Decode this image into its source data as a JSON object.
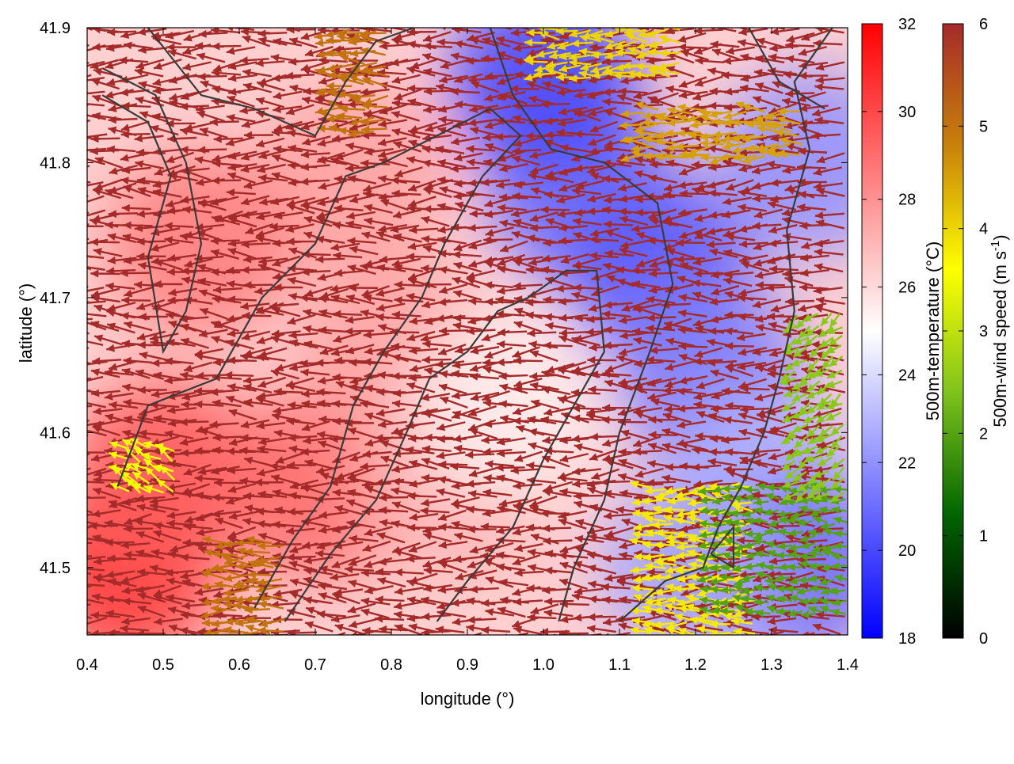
{
  "chart_data": {
    "type": "heatmap",
    "title": "",
    "xlabel": "longitude (°)",
    "ylabel": "latitude (°)",
    "xlim": [
      0.4,
      1.4
    ],
    "ylim": [
      41.45,
      41.9
    ],
    "xticks": [
      "0.4",
      "0.5",
      "0.6",
      "0.7",
      "0.8",
      "0.9",
      "1.0",
      "1.1",
      "1.2",
      "1.3",
      "1.4"
    ],
    "yticks": [
      "41.5",
      "41.6",
      "41.7",
      "41.8",
      "41.9"
    ],
    "grid": false,
    "temperature_colorbar": {
      "label": "500m-temperature (°C)",
      "range": [
        18,
        32
      ],
      "ticks": [
        "18",
        "20",
        "22",
        "24",
        "26",
        "28",
        "30",
        "32"
      ],
      "colors": [
        "#0000ff",
        "#ffffff",
        "#ff0000"
      ]
    },
    "windspeed_colorbar": {
      "label_main": "500m-wind speed (m s",
      "label_sup": "-1",
      "label_end": ")",
      "range": [
        0,
        6
      ],
      "ticks": [
        "0",
        "1",
        "2",
        "3",
        "4",
        "5",
        "6"
      ],
      "colors": [
        "#000000",
        "#006400",
        "#7fc31c",
        "#ffff00",
        "#c8820a",
        "#a52a2a"
      ]
    },
    "temperature_field": [
      {
        "lon": 0.45,
        "lat": 41.5,
        "temp": 30.5
      },
      {
        "lon": 0.5,
        "lat": 41.57,
        "temp": 29.5
      },
      {
        "lon": 0.7,
        "lat": 41.56,
        "temp": 29.0
      },
      {
        "lon": 0.8,
        "lat": 41.66,
        "temp": 27.5
      },
      {
        "lon": 0.88,
        "lat": 41.56,
        "temp": 27.0
      },
      {
        "lon": 0.75,
        "lat": 41.79,
        "temp": 27.5
      },
      {
        "lon": 0.55,
        "lat": 41.74,
        "temp": 28.5
      },
      {
        "lon": 0.95,
        "lat": 41.62,
        "temp": 25.5
      },
      {
        "lon": 1.05,
        "lat": 41.78,
        "temp": 21.0
      },
      {
        "lon": 1.15,
        "lat": 41.72,
        "temp": 20.5
      },
      {
        "lon": 1.0,
        "lat": 41.86,
        "temp": 20.0
      },
      {
        "lon": 1.22,
        "lat": 41.64,
        "temp": 21.5
      },
      {
        "lon": 1.3,
        "lat": 41.56,
        "temp": 23.0
      },
      {
        "lon": 1.33,
        "lat": 41.5,
        "temp": 21.0
      },
      {
        "lon": 1.2,
        "lat": 41.5,
        "temp": 22.5
      },
      {
        "lon": 1.35,
        "lat": 41.8,
        "temp": 22.0
      }
    ],
    "wind_regions": [
      {
        "lon": [
          0.4,
          1.4
        ],
        "lat": [
          41.45,
          41.9
        ],
        "speed": 6.0,
        "direction": "easterly"
      },
      {
        "lon": [
          1.14,
          1.28
        ],
        "lat": [
          41.45,
          41.56
        ],
        "speed": 3.8,
        "direction": "easterly"
      },
      {
        "lon": [
          1.22,
          1.4
        ],
        "lat": [
          41.46,
          41.56
        ],
        "speed": 2.0,
        "direction": "easterly"
      },
      {
        "lon": [
          1.13,
          1.35
        ],
        "lat": [
          41.8,
          41.84
        ],
        "speed": 4.5,
        "direction": "easterly"
      },
      {
        "lon": [
          1.0,
          1.18
        ],
        "lat": [
          41.86,
          41.9
        ],
        "speed": 4.0,
        "direction": "easterly"
      },
      {
        "lon": [
          1.33,
          1.4
        ],
        "lat": [
          41.55,
          41.69
        ],
        "speed": 2.5,
        "direction": "northeasterly"
      },
      {
        "lon": [
          0.45,
          0.52
        ],
        "lat": [
          41.55,
          41.59
        ],
        "speed": 3.5,
        "direction": "southeasterly"
      },
      {
        "lon": [
          0.58,
          0.66
        ],
        "lat": [
          41.45,
          41.52
        ],
        "speed": 5.0,
        "direction": "easterly"
      },
      {
        "lon": [
          0.73,
          0.8
        ],
        "lat": [
          41.82,
          41.9
        ],
        "speed": 5.0,
        "direction": "easterly"
      }
    ],
    "contours": [
      [
        [
          0.42,
          41.85
        ],
        [
          0.48,
          41.83
        ],
        [
          0.51,
          41.79
        ],
        [
          0.48,
          41.73
        ],
        [
          0.5,
          41.66
        ],
        [
          0.53,
          41.69
        ],
        [
          0.55,
          41.74
        ],
        [
          0.53,
          41.8
        ],
        [
          0.49,
          41.85
        ],
        [
          0.42,
          41.87
        ]
      ],
      [
        [
          0.44,
          41.56
        ],
        [
          0.48,
          41.62
        ],
        [
          0.57,
          41.64
        ],
        [
          0.63,
          41.7
        ],
        [
          0.7,
          41.74
        ],
        [
          0.74,
          41.79
        ],
        [
          0.79,
          41.8
        ],
        [
          0.86,
          41.82
        ],
        [
          0.93,
          41.84
        ],
        [
          0.97,
          41.82
        ],
        [
          0.92,
          41.79
        ],
        [
          0.87,
          41.74
        ],
        [
          0.84,
          41.7
        ],
        [
          0.79,
          41.66
        ],
        [
          0.75,
          41.62
        ],
        [
          0.72,
          41.56
        ],
        [
          0.67,
          41.52
        ],
        [
          0.62,
          41.47
        ]
      ],
      [
        [
          0.48,
          41.9
        ],
        [
          0.55,
          41.85
        ],
        [
          0.62,
          41.84
        ],
        [
          0.7,
          41.82
        ],
        [
          0.74,
          41.86
        ],
        [
          0.78,
          41.89
        ],
        [
          0.83,
          41.9
        ]
      ],
      [
        [
          0.66,
          41.46
        ],
        [
          0.72,
          41.51
        ],
        [
          0.78,
          41.55
        ],
        [
          0.82,
          41.6
        ],
        [
          0.85,
          41.64
        ],
        [
          0.9,
          41.66
        ],
        [
          0.94,
          41.69
        ],
        [
          0.98,
          41.7
        ],
        [
          1.03,
          41.72
        ],
        [
          1.07,
          41.72
        ],
        [
          1.08,
          41.66
        ],
        [
          1.04,
          41.62
        ],
        [
          1.0,
          41.58
        ],
        [
          0.96,
          41.53
        ],
        [
          0.9,
          41.49
        ],
        [
          0.86,
          41.46
        ]
      ],
      [
        [
          0.93,
          41.9
        ],
        [
          0.96,
          41.85
        ],
        [
          1.01,
          41.81
        ],
        [
          1.08,
          41.8
        ],
        [
          1.15,
          41.77
        ],
        [
          1.17,
          41.71
        ],
        [
          1.14,
          41.66
        ],
        [
          1.1,
          41.6
        ],
        [
          1.08,
          41.55
        ],
        [
          1.04,
          41.5
        ],
        [
          1.02,
          41.46
        ]
      ],
      [
        [
          1.1,
          41.46
        ],
        [
          1.16,
          41.49
        ],
        [
          1.21,
          41.5
        ],
        [
          1.23,
          41.53
        ],
        [
          1.26,
          41.56
        ],
        [
          1.29,
          41.6
        ],
        [
          1.31,
          41.64
        ],
        [
          1.33,
          41.69
        ],
        [
          1.32,
          41.75
        ],
        [
          1.35,
          41.81
        ],
        [
          1.33,
          41.86
        ],
        [
          1.38,
          41.9
        ]
      ],
      [
        [
          1.22,
          41.51
        ],
        [
          1.25,
          41.53
        ],
        [
          1.25,
          41.5
        ],
        [
          1.22,
          41.51
        ]
      ],
      [
        [
          1.27,
          41.9
        ],
        [
          1.31,
          41.86
        ],
        [
          1.37,
          41.84
        ]
      ]
    ]
  }
}
